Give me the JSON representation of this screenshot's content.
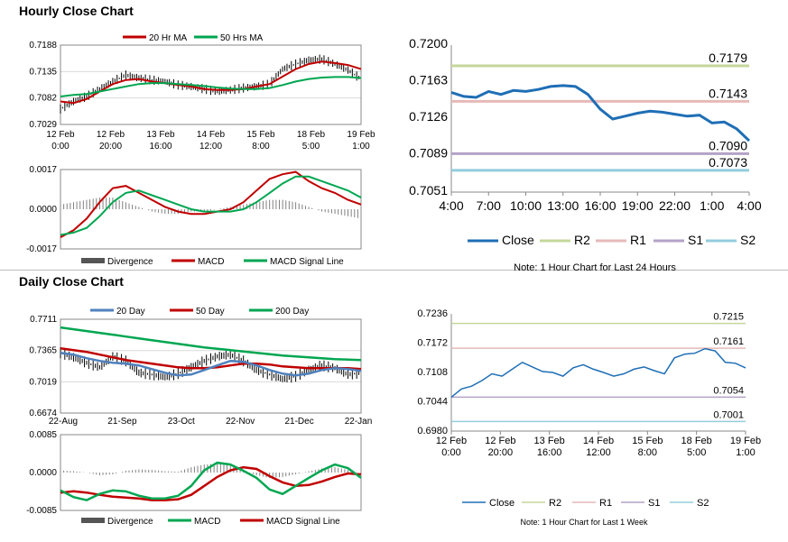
{
  "sections": {
    "hourly_title": "Hourly Close Chart",
    "daily_title": "Daily Close Chart"
  },
  "colors": {
    "ma_short": "#c00000",
    "ma_long": "#00a651",
    "ma_200": "#00a651",
    "ma_20": "#4f81bd",
    "close_blue": "#1f6eb5",
    "r2": "#c4d79b",
    "r1": "#e6b9b8",
    "s1": "#b3a2c7",
    "s2": "#93cddd",
    "price_bar": "#000000",
    "divergence": "#808080"
  },
  "chart_data": [
    {
      "id": "hourly-price",
      "type": "line",
      "legend": [
        "20 Hr MA",
        "50 Hrs MA"
      ],
      "y_ticks": [
        "0.7188",
        "0.7135",
        "0.7082",
        "0.7029"
      ],
      "ylim": [
        0.7029,
        0.7188
      ],
      "x_ticks": [
        [
          "12 Feb",
          "0:00"
        ],
        [
          "12 Feb",
          "20:00"
        ],
        [
          "13 Feb",
          "16:00"
        ],
        [
          "14 Feb",
          "12:00"
        ],
        [
          "15 Feb",
          "8:00"
        ],
        [
          "18 Feb",
          "5:00"
        ],
        [
          "19 Feb",
          "1:00"
        ]
      ],
      "close": [
        0.706,
        0.7075,
        0.7085,
        0.71,
        0.7115,
        0.7128,
        0.7122,
        0.7118,
        0.7115,
        0.7108,
        0.7105,
        0.71,
        0.7095,
        0.7098,
        0.7102,
        0.7105,
        0.711,
        0.714,
        0.715,
        0.7158,
        0.716,
        0.715,
        0.7138,
        0.712
      ],
      "series": [
        {
          "name": "20 Hr MA",
          "values": [
            0.7075,
            0.7072,
            0.708,
            0.7095,
            0.711,
            0.7118,
            0.712,
            0.7115,
            0.7112,
            0.7108,
            0.7105,
            0.71,
            0.7098,
            0.7098,
            0.71,
            0.7105,
            0.711,
            0.7125,
            0.714,
            0.715,
            0.7155,
            0.7152,
            0.7148,
            0.714
          ]
        },
        {
          "name": "50 Hrs MA",
          "values": [
            0.7085,
            0.7088,
            0.709,
            0.7095,
            0.71,
            0.7105,
            0.711,
            0.7112,
            0.7112,
            0.711,
            0.7108,
            0.7106,
            0.7103,
            0.7101,
            0.71,
            0.71,
            0.7102,
            0.7108,
            0.7115,
            0.712,
            0.7123,
            0.7124,
            0.7124,
            0.7122
          ]
        }
      ]
    },
    {
      "id": "hourly-macd",
      "type": "line",
      "legend": [
        "Divergence",
        "MACD",
        "MACD Signal Line"
      ],
      "y_ticks": [
        "0.0017",
        "0.0000",
        "-0.0017"
      ],
      "ylim": [
        -0.0017,
        0.0017
      ],
      "divergence": [
        0.0002,
        0.0003,
        0.0004,
        0.0005,
        0.0005,
        0.0003,
        0.0001,
        -0.0001,
        -0.0002,
        -0.0002,
        -0.0001,
        -0.0001,
        0.0,
        0.0001,
        0.0002,
        0.0003,
        0.0004,
        0.0004,
        0.0003,
        0.0001,
        -0.0001,
        -0.0002,
        -0.0003,
        -0.0004
      ],
      "series": [
        {
          "name": "MACD",
          "values": [
            -0.0012,
            -0.0009,
            -0.0004,
            0.0003,
            0.0009,
            0.001,
            0.0007,
            0.0004,
            0.0001,
            -0.0001,
            -0.0002,
            -0.0002,
            -0.0001,
            0.0,
            0.0003,
            0.0008,
            0.0013,
            0.0015,
            0.0016,
            0.0012,
            0.0009,
            0.0007,
            0.0004,
            0.0002
          ]
        },
        {
          "name": "MACD Signal Line",
          "values": [
            -0.0011,
            -0.001,
            -0.0008,
            -0.0003,
            0.0003,
            0.0007,
            0.0008,
            0.0006,
            0.0004,
            0.0002,
            0.0,
            -0.0001,
            -0.0001,
            -0.0001,
            0.0,
            0.0003,
            0.0007,
            0.0011,
            0.0014,
            0.0014,
            0.0012,
            0.001,
            0.0008,
            0.0005
          ]
        }
      ]
    },
    {
      "id": "hourly-pivots",
      "type": "line",
      "y_ticks": [
        "0.7200",
        "0.7163",
        "0.7126",
        "0.7089",
        "0.7051"
      ],
      "ylim": [
        0.7051,
        0.72
      ],
      "x_ticks": [
        "4:00",
        "7:00",
        "10:00",
        "13:00",
        "16:00",
        "19:00",
        "22:00",
        "1:00",
        "4:00"
      ],
      "legend": [
        "Close",
        "R2",
        "R1",
        "S1",
        "S2"
      ],
      "levels": {
        "R2": 0.7179,
        "R1": 0.7143,
        "S1": 0.709,
        "S2": 0.7073
      },
      "level_labels": {
        "R2": "0.7179",
        "R1": "0.7143",
        "S1": "0.7090",
        "S2": "0.7073"
      },
      "close": [
        0.7152,
        0.7148,
        0.7147,
        0.7153,
        0.715,
        0.7154,
        0.7153,
        0.7155,
        0.7158,
        0.7159,
        0.7158,
        0.715,
        0.7135,
        0.7125,
        0.7128,
        0.7131,
        0.7133,
        0.7132,
        0.713,
        0.7128,
        0.7129,
        0.7121,
        0.7122,
        0.7115,
        0.7103
      ],
      "note": "Note: 1 Hour Chart for Last 24 Hours"
    },
    {
      "id": "daily-price",
      "type": "line",
      "legend": [
        "20 Day",
        "50 Day",
        "200 Day"
      ],
      "y_ticks": [
        "0.7711",
        "0.7365",
        "0.7019",
        "0.6674"
      ],
      "ylim": [
        0.6674,
        0.7711
      ],
      "x_ticks": [
        "22-Aug",
        "21-Sep",
        "23-Oct",
        "22-Nov",
        "21-Dec",
        "22-Jan"
      ],
      "close": [
        0.734,
        0.729,
        0.723,
        0.718,
        0.73,
        0.725,
        0.712,
        0.71,
        0.707,
        0.711,
        0.718,
        0.725,
        0.73,
        0.732,
        0.725,
        0.715,
        0.71,
        0.705,
        0.708,
        0.715,
        0.72,
        0.717,
        0.71,
        0.712
      ],
      "series": [
        {
          "name": "20 Day",
          "values": [
            0.734,
            0.732,
            0.728,
            0.725,
            0.723,
            0.722,
            0.72,
            0.716,
            0.712,
            0.709,
            0.71,
            0.715,
            0.72,
            0.725,
            0.724,
            0.72,
            0.715,
            0.711,
            0.709,
            0.711,
            0.715,
            0.717,
            0.716,
            0.714
          ]
        },
        {
          "name": "50 Day",
          "values": [
            0.739,
            0.737,
            0.735,
            0.732,
            0.729,
            0.726,
            0.724,
            0.722,
            0.72,
            0.718,
            0.717,
            0.717,
            0.718,
            0.72,
            0.722,
            0.722,
            0.721,
            0.719,
            0.718,
            0.717,
            0.717,
            0.717,
            0.717,
            0.716
          ]
        },
        {
          "name": "200 Day",
          "values": [
            0.762,
            0.76,
            0.758,
            0.756,
            0.754,
            0.752,
            0.75,
            0.748,
            0.746,
            0.744,
            0.742,
            0.74,
            0.7385,
            0.737,
            0.7355,
            0.734,
            0.7325,
            0.731,
            0.73,
            0.729,
            0.728,
            0.727,
            0.7265,
            0.726
          ]
        }
      ]
    },
    {
      "id": "daily-macd",
      "type": "line",
      "legend": [
        "Divergence",
        "MACD",
        "MACD Signal Line"
      ],
      "y_ticks": [
        "0.0085",
        "0.0000",
        "-0.0085"
      ],
      "ylim": [
        -0.0085,
        0.0085
      ],
      "divergence": [
        0.0005,
        0.0003,
        0.0,
        -0.0006,
        -0.0004,
        0.0004,
        0.0007,
        0.0006,
        0.0003,
        0.0002,
        0.0012,
        0.0018,
        0.002,
        0.0015,
        0.0005,
        -0.0006,
        -0.0012,
        -0.001,
        -0.0004,
        0.0003,
        0.0009,
        0.0012,
        0.0006,
        -0.0002
      ],
      "series": [
        {
          "name": "MACD",
          "values": [
            -0.004,
            -0.0055,
            -0.0062,
            -0.0048,
            -0.004,
            -0.0042,
            -0.0052,
            -0.0058,
            -0.0058,
            -0.0052,
            -0.003,
            0.0005,
            0.0022,
            0.0018,
            0.0004,
            -0.0012,
            -0.0038,
            -0.0048,
            -0.003,
            -0.0012,
            0.0005,
            0.0018,
            0.001,
            -0.0012
          ]
        },
        {
          "name": "MACD Signal Line",
          "values": [
            -0.0045,
            -0.0042,
            -0.0045,
            -0.005,
            -0.0054,
            -0.0056,
            -0.0058,
            -0.0062,
            -0.0062,
            -0.006,
            -0.005,
            -0.003,
            -0.001,
            0.0005,
            0.0012,
            0.0008,
            -0.0008,
            -0.0022,
            -0.003,
            -0.0028,
            -0.002,
            -0.001,
            -0.0002,
            -0.0004
          ]
        }
      ]
    },
    {
      "id": "daily-pivots",
      "type": "line",
      "y_ticks": [
        "0.7236",
        "0.7172",
        "0.7108",
        "0.7044",
        "0.6980"
      ],
      "ylim": [
        0.698,
        0.7236
      ],
      "x_ticks": [
        [
          "12 Feb",
          "0:00"
        ],
        [
          "12 Feb",
          "20:00"
        ],
        [
          "13 Feb",
          "16:00"
        ],
        [
          "14 Feb",
          "12:00"
        ],
        [
          "15 Feb",
          "8:00"
        ],
        [
          "18 Feb",
          "5:00"
        ],
        [
          "19 Feb",
          "1:00"
        ]
      ],
      "legend": [
        "Close",
        "R2",
        "R1",
        "S1",
        "S2"
      ],
      "levels": {
        "R2": 0.7215,
        "R1": 0.7161,
        "S1": 0.7054,
        "S2": 0.7001
      },
      "level_labels": {
        "R2": "0.7215",
        "R1": "0.7161",
        "S1": "0.7054",
        "S2": "0.7001"
      },
      "close": [
        0.7054,
        0.7072,
        0.7078,
        0.709,
        0.7105,
        0.71,
        0.7115,
        0.713,
        0.712,
        0.711,
        0.7108,
        0.71,
        0.7118,
        0.7125,
        0.7115,
        0.7108,
        0.71,
        0.7105,
        0.7115,
        0.712,
        0.7112,
        0.7105,
        0.714,
        0.7148,
        0.715,
        0.716,
        0.7155,
        0.713,
        0.7128,
        0.7118
      ],
      "note": "Note: 1 Hour Chart for Last 1 Week"
    }
  ]
}
